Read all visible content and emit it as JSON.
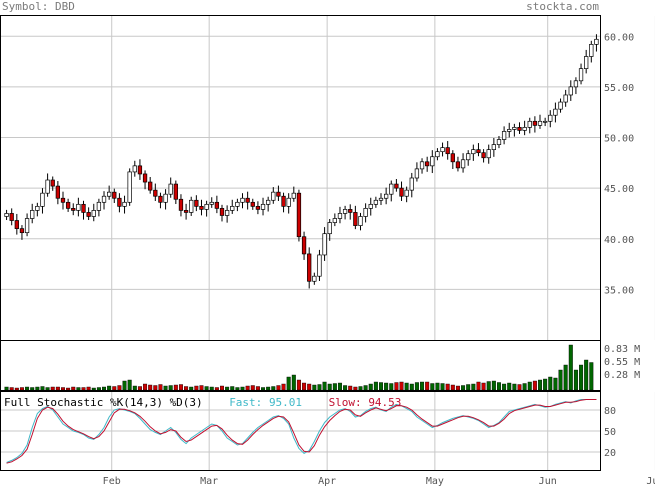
{
  "header": {
    "symbol": "Symbol: DBD",
    "source": "stockta.com"
  },
  "indicator": {
    "title": "Full Stochastic %K(14,3) %D(3)",
    "fast_label": "Fast:",
    "fast_value": "95.01",
    "slow_label": "Slow:",
    "slow_value": "94.53",
    "fast_color": "#3fb8c8",
    "slow_color": "#c01030"
  },
  "chart_data": {
    "type": "candlestick",
    "price_axis": {
      "ticks": [
        35,
        40,
        45,
        50,
        55,
        60
      ],
      "labels": [
        "35.00",
        "40.00",
        "45.00",
        "50.00",
        "55.00",
        "60.00"
      ],
      "range": [
        30,
        62
      ]
    },
    "volume_axis": {
      "labels": [
        "0.83 M",
        "0.55 M",
        "0.28 M"
      ]
    },
    "stoch_axis": {
      "ticks": [
        20,
        50,
        80
      ],
      "labels": [
        "20",
        "50",
        "80"
      ],
      "range": [
        0,
        100
      ]
    },
    "months": [
      "Feb",
      "Mar",
      "Apr",
      "May",
      "Jun",
      "Jul"
    ],
    "month_start_index": [
      21,
      40,
      63,
      84,
      106,
      127
    ],
    "grid": true,
    "up_color": "#ffffff",
    "down_color": "#cc0000",
    "vol_up_color": "#006600",
    "vol_down_color": "#cc0000",
    "closes": [
      42.5,
      41.8,
      41.0,
      40.6,
      42.0,
      42.8,
      43.2,
      44.5,
      45.8,
      45.2,
      44.0,
      43.6,
      43.0,
      42.8,
      43.4,
      42.6,
      42.2,
      42.8,
      43.6,
      44.2,
      44.6,
      44.0,
      43.2,
      43.6,
      46.6,
      47.2,
      46.4,
      45.6,
      44.8,
      44.2,
      43.6,
      44.4,
      45.4,
      43.9,
      42.8,
      42.6,
      43.8,
      43.2,
      42.9,
      43.4,
      43.6,
      43.0,
      42.3,
      42.8,
      43.2,
      43.6,
      44.0,
      43.6,
      43.2,
      42.9,
      43.4,
      43.8,
      44.6,
      44.2,
      43.2,
      44.0,
      44.5,
      40.2,
      38.5,
      35.8,
      36.3,
      38.4,
      40.5,
      41.6,
      42.0,
      42.5,
      42.9,
      42.6,
      41.3,
      42.2,
      43.0,
      43.4,
      43.8,
      44.0,
      44.4,
      45.4,
      45.0,
      44.2,
      44.8,
      46.0,
      46.9,
      47.6,
      47.2,
      48.1,
      48.6,
      49.0,
      48.4,
      47.6,
      47.0,
      47.8,
      48.4,
      48.8,
      48.5,
      48.0,
      48.8,
      49.3,
      49.8,
      50.6,
      50.8,
      51.0,
      50.7,
      51.0,
      51.6,
      51.2,
      51.6,
      51.6,
      52.2,
      52.8,
      53.5,
      54.2,
      55.0,
      55.6,
      56.8,
      58.0,
      59.2,
      59.7
    ],
    "volume": [
      0.06,
      0.05,
      0.04,
      0.05,
      0.06,
      0.05,
      0.06,
      0.07,
      0.05,
      0.06,
      0.06,
      0.05,
      0.04,
      0.06,
      0.05,
      0.05,
      0.06,
      0.04,
      0.05,
      0.06,
      0.08,
      0.07,
      0.09,
      0.18,
      0.2,
      0.08,
      0.07,
      0.12,
      0.1,
      0.09,
      0.11,
      0.08,
      0.09,
      0.1,
      0.11,
      0.07,
      0.06,
      0.08,
      0.09,
      0.07,
      0.06,
      0.05,
      0.08,
      0.06,
      0.07,
      0.05,
      0.06,
      0.08,
      0.09,
      0.07,
      0.05,
      0.06,
      0.07,
      0.09,
      0.12,
      0.26,
      0.3,
      0.2,
      0.14,
      0.12,
      0.1,
      0.11,
      0.16,
      0.12,
      0.13,
      0.14,
      0.09,
      0.08,
      0.06,
      0.07,
      0.09,
      0.12,
      0.16,
      0.15,
      0.14,
      0.13,
      0.15,
      0.16,
      0.14,
      0.12,
      0.15,
      0.16,
      0.16,
      0.13,
      0.14,
      0.13,
      0.12,
      0.1,
      0.08,
      0.09,
      0.11,
      0.12,
      0.16,
      0.14,
      0.17,
      0.18,
      0.15,
      0.12,
      0.14,
      0.12,
      0.11,
      0.13,
      0.16,
      0.18,
      0.2,
      0.22,
      0.26,
      0.24,
      0.4,
      0.5,
      0.9,
      0.4,
      0.5,
      0.6,
      0.55
    ],
    "stoch_fast": [
      5,
      8,
      12,
      18,
      30,
      55,
      75,
      82,
      85,
      80,
      70,
      60,
      55,
      50,
      48,
      45,
      40,
      38,
      45,
      55,
      70,
      80,
      82,
      80,
      78,
      75,
      68,
      60,
      52,
      48,
      45,
      50,
      55,
      48,
      38,
      32,
      40,
      45,
      50,
      55,
      60,
      58,
      50,
      40,
      35,
      30,
      32,
      40,
      48,
      55,
      60,
      65,
      70,
      72,
      68,
      60,
      40,
      25,
      18,
      22,
      35,
      50,
      62,
      70,
      75,
      80,
      82,
      78,
      70,
      72,
      78,
      82,
      84,
      80,
      78,
      84,
      88,
      86,
      82,
      78,
      70,
      65,
      60,
      55,
      58,
      62,
      65,
      68,
      70,
      72,
      70,
      68,
      65,
      60,
      55,
      58,
      62,
      70,
      78,
      80,
      82,
      84,
      86,
      88,
      86,
      84,
      85,
      88,
      90,
      92,
      90,
      93,
      95,
      95,
      95,
      95
    ],
    "stoch_slow": [
      4,
      6,
      10,
      15,
      24,
      45,
      68,
      80,
      84,
      82,
      74,
      64,
      57,
      52,
      49,
      46,
      42,
      39,
      42,
      50,
      63,
      76,
      81,
      81,
      79,
      76,
      71,
      64,
      56,
      50,
      46,
      48,
      52,
      50,
      41,
      35,
      37,
      42,
      47,
      52,
      57,
      58,
      53,
      44,
      37,
      32,
      31,
      37,
      45,
      52,
      58,
      63,
      68,
      71,
      70,
      63,
      47,
      30,
      21,
      20,
      29,
      44,
      56,
      65,
      72,
      78,
      81,
      80,
      73,
      71,
      76,
      80,
      83,
      81,
      79,
      82,
      86,
      86,
      84,
      80,
      73,
      67,
      62,
      57,
      57,
      60,
      63,
      66,
      69,
      71,
      71,
      69,
      66,
      62,
      57,
      57,
      61,
      67,
      75,
      79,
      81,
      83,
      85,
      87,
      87,
      85,
      85,
      87,
      89,
      91,
      91,
      92,
      94,
      95,
      95,
      95
    ]
  }
}
